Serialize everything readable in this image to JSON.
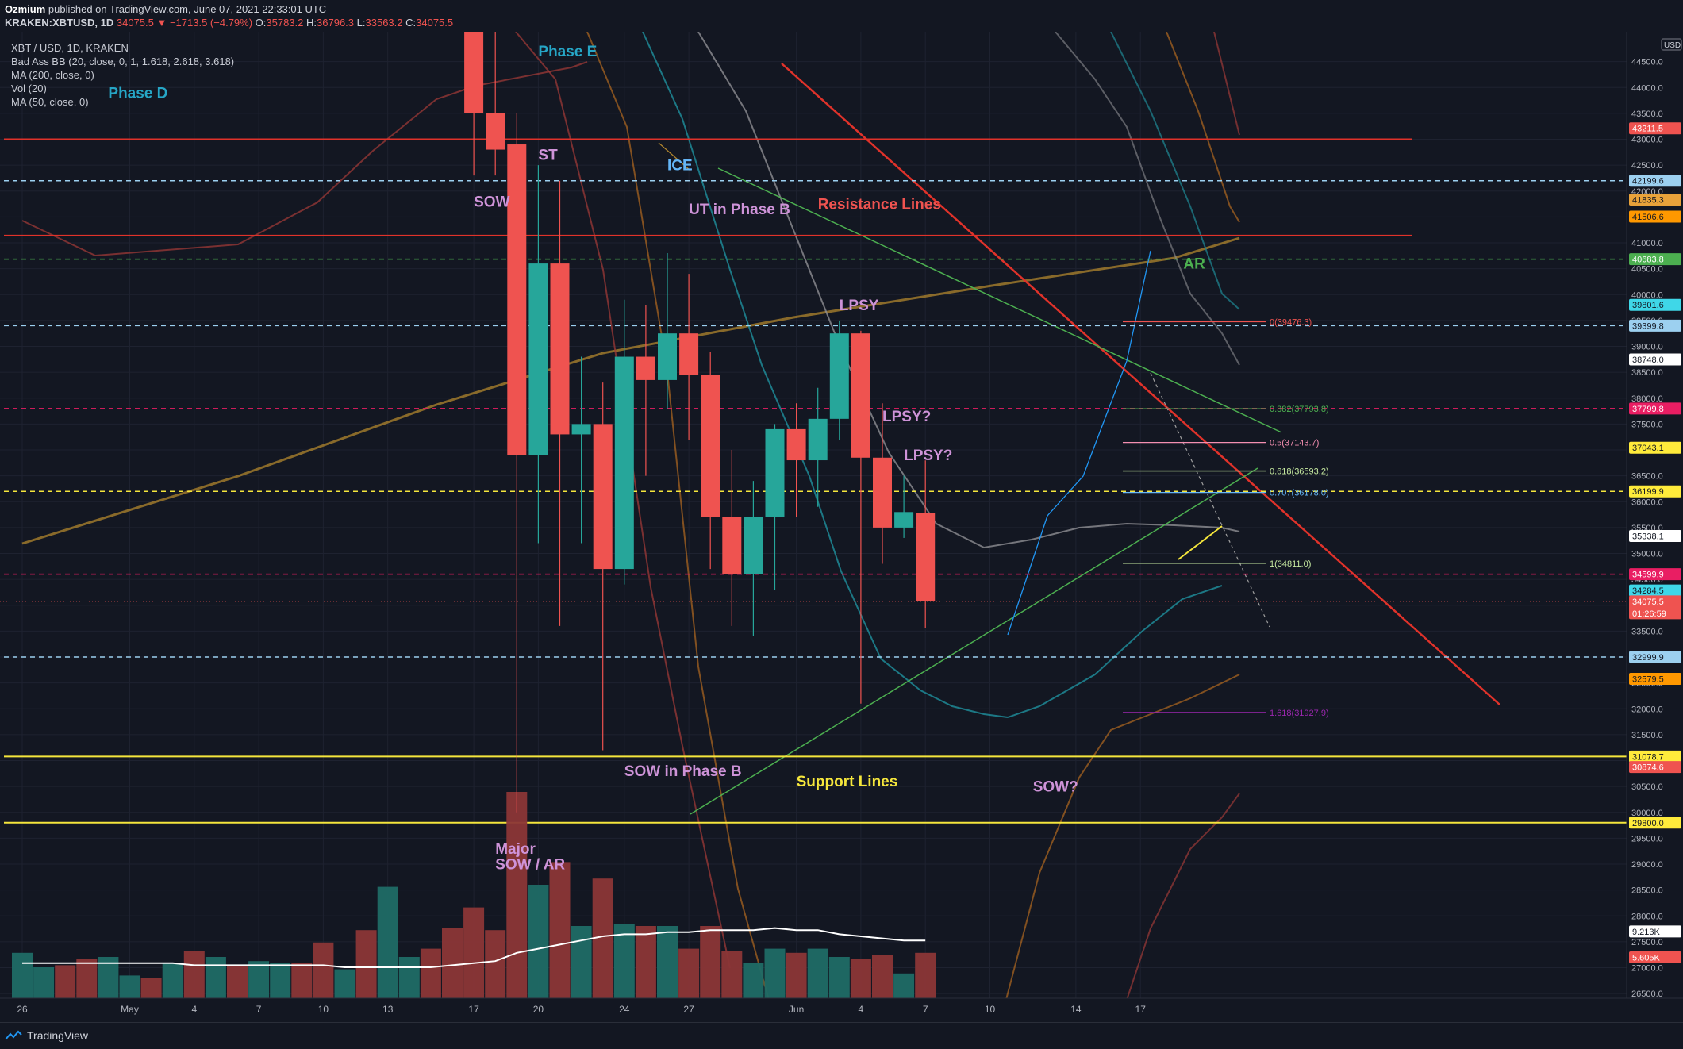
{
  "header": {
    "author": "Ozmium",
    "published_text": " published on TradingView.com, June 07, 2021 22:33:01 UTC",
    "symbol": "KRAKEN:XBTUSD, 1D",
    "last": "34075.5",
    "change": "▼ −1713.5 (−4.79%)",
    "o_label": "O:",
    "o": "35783.2",
    "h_label": "H:",
    "h": "36796.3",
    "l_label": "L:",
    "l": "33563.2",
    "c_label": "C:",
    "c": "34075.5"
  },
  "legend": [
    "XBT / USD, 1D, KRAKEN",
    "Bad Ass BB (20, close, 0, 1, 1.618, 2.618, 3.618)",
    "MA (200, close, 0)",
    "Vol (20)",
    "MA (50, close, 0)"
  ],
  "footer": {
    "brand": "TradingView"
  },
  "colors": {
    "up": "#26a69a",
    "down": "#ef5350",
    "background": "#131722"
  },
  "chart_data": {
    "type": "candlestick",
    "currency_label": "USD",
    "y_ticks": [
      26500,
      27000,
      27500,
      28000,
      28500,
      29000,
      29500,
      30000,
      30500,
      31000,
      31500,
      32000,
      32500,
      33000,
      33500,
      34000,
      34500,
      35000,
      35500,
      36000,
      36500,
      37000,
      37500,
      38000,
      38500,
      39000,
      39500,
      40000,
      40500,
      41000,
      41500,
      42000,
      42500,
      43000,
      43500,
      44000,
      44500
    ],
    "x_ticks": [
      {
        "label": "26",
        "date": "2021-04-26"
      },
      {
        "label": "May",
        "date": "2021-05-01"
      },
      {
        "label": "4",
        "date": "2021-05-04"
      },
      {
        "label": "7",
        "date": "2021-05-07"
      },
      {
        "label": "10",
        "date": "2021-05-10"
      },
      {
        "label": "13",
        "date": "2021-05-13"
      },
      {
        "label": "17",
        "date": "2021-05-17"
      },
      {
        "label": "20",
        "date": "2021-05-20"
      },
      {
        "label": "24",
        "date": "2021-05-24"
      },
      {
        "label": "27",
        "date": "2021-05-27"
      },
      {
        "label": "Jun",
        "date": "2021-06-01"
      },
      {
        "label": "4",
        "date": "2021-06-04"
      },
      {
        "label": "7",
        "date": "2021-06-07"
      },
      {
        "label": "10",
        "date": "2021-06-10"
      },
      {
        "label": "14",
        "date": "2021-06-14"
      },
      {
        "label": "17",
        "date": "2021-06-17"
      }
    ],
    "candles": [
      {
        "date": "2021-05-17",
        "open": 45300,
        "high": 46600,
        "low": 42300,
        "close": 43500
      },
      {
        "date": "2021-05-18",
        "open": 43500,
        "high": 45300,
        "low": 42300,
        "close": 42800
      },
      {
        "date": "2021-05-19",
        "open": 42900,
        "high": 43500,
        "low": 30000,
        "close": 36900
      },
      {
        "date": "2021-05-20",
        "open": 36900,
        "high": 42500,
        "low": 35200,
        "close": 40600
      },
      {
        "date": "2021-05-21",
        "open": 40600,
        "high": 42200,
        "low": 33600,
        "close": 37300
      },
      {
        "date": "2021-05-22",
        "open": 37300,
        "high": 38800,
        "low": 35200,
        "close": 37500
      },
      {
        "date": "2021-05-23",
        "open": 37500,
        "high": 38300,
        "low": 31200,
        "close": 34700
      },
      {
        "date": "2021-05-24",
        "open": 34700,
        "high": 39900,
        "low": 34400,
        "close": 38800
      },
      {
        "date": "2021-05-25",
        "open": 38800,
        "high": 39800,
        "low": 36500,
        "close": 38350
      },
      {
        "date": "2021-05-26",
        "open": 38350,
        "high": 40800,
        "low": 37800,
        "close": 39250
      },
      {
        "date": "2021-05-27",
        "open": 39250,
        "high": 40400,
        "low": 37200,
        "close": 38450
      },
      {
        "date": "2021-05-28",
        "open": 38450,
        "high": 38900,
        "low": 34700,
        "close": 35700
      },
      {
        "date": "2021-05-29",
        "open": 35700,
        "high": 37000,
        "low": 33600,
        "close": 34600
      },
      {
        "date": "2021-05-30",
        "open": 34600,
        "high": 36400,
        "low": 33400,
        "close": 35700
      },
      {
        "date": "2021-05-31",
        "open": 35700,
        "high": 37500,
        "low": 34300,
        "close": 37400
      },
      {
        "date": "2021-06-01",
        "open": 37400,
        "high": 37900,
        "low": 35700,
        "close": 36800
      },
      {
        "date": "2021-06-02",
        "open": 36800,
        "high": 38200,
        "low": 35900,
        "close": 37600
      },
      {
        "date": "2021-06-03",
        "open": 37600,
        "high": 39500,
        "low": 37200,
        "close": 39250
      },
      {
        "date": "2021-06-04",
        "open": 39250,
        "high": 39300,
        "low": 32100,
        "close": 36850
      },
      {
        "date": "2021-06-05",
        "open": 36850,
        "high": 37900,
        "low": 34800,
        "close": 35500
      },
      {
        "date": "2021-06-06",
        "open": 35500,
        "high": 36500,
        "low": 35300,
        "close": 35800
      },
      {
        "date": "2021-06-07",
        "open": 35783.2,
        "high": 36796.3,
        "low": 33563.2,
        "close": 34075.5
      }
    ],
    "volume": {
      "max": 100,
      "bars": [
        {
          "date": "2021-04-26",
          "v": 22,
          "dir": "up"
        },
        {
          "date": "2021-04-27",
          "v": 15,
          "dir": "up"
        },
        {
          "date": "2021-04-28",
          "v": 16,
          "dir": "down"
        },
        {
          "date": "2021-04-29",
          "v": 19,
          "dir": "down"
        },
        {
          "date": "2021-04-30",
          "v": 20,
          "dir": "up"
        },
        {
          "date": "2021-05-01",
          "v": 11,
          "dir": "up"
        },
        {
          "date": "2021-05-02",
          "v": 10,
          "dir": "down"
        },
        {
          "date": "2021-05-03",
          "v": 17,
          "dir": "up"
        },
        {
          "date": "2021-05-04",
          "v": 23,
          "dir": "down"
        },
        {
          "date": "2021-05-05",
          "v": 20,
          "dir": "up"
        },
        {
          "date": "2021-05-06",
          "v": 16,
          "dir": "down"
        },
        {
          "date": "2021-05-07",
          "v": 18,
          "dir": "up"
        },
        {
          "date": "2021-05-08",
          "v": 17,
          "dir": "up"
        },
        {
          "date": "2021-05-09",
          "v": 17,
          "dir": "down"
        },
        {
          "date": "2021-05-10",
          "v": 27,
          "dir": "down"
        },
        {
          "date": "2021-05-11",
          "v": 14,
          "dir": "up"
        },
        {
          "date": "2021-05-12",
          "v": 33,
          "dir": "down"
        },
        {
          "date": "2021-05-13",
          "v": 54,
          "dir": "up"
        },
        {
          "date": "2021-05-14",
          "v": 20,
          "dir": "up"
        },
        {
          "date": "2021-05-15",
          "v": 24,
          "dir": "down"
        },
        {
          "date": "2021-05-16",
          "v": 34,
          "dir": "down"
        },
        {
          "date": "2021-05-17",
          "v": 44,
          "dir": "down"
        },
        {
          "date": "2021-05-18",
          "v": 33,
          "dir": "down"
        },
        {
          "date": "2021-05-19",
          "v": 100,
          "dir": "down"
        },
        {
          "date": "2021-05-20",
          "v": 55,
          "dir": "up"
        },
        {
          "date": "2021-05-21",
          "v": 66,
          "dir": "down"
        },
        {
          "date": "2021-05-22",
          "v": 35,
          "dir": "up"
        },
        {
          "date": "2021-05-23",
          "v": 58,
          "dir": "down"
        },
        {
          "date": "2021-05-24",
          "v": 36,
          "dir": "up"
        },
        {
          "date": "2021-05-25",
          "v": 35,
          "dir": "down"
        },
        {
          "date": "2021-05-26",
          "v": 35,
          "dir": "up"
        },
        {
          "date": "2021-05-27",
          "v": 24,
          "dir": "down"
        },
        {
          "date": "2021-05-28",
          "v": 35,
          "dir": "down"
        },
        {
          "date": "2021-05-29",
          "v": 23,
          "dir": "down"
        },
        {
          "date": "2021-05-30",
          "v": 17,
          "dir": "up"
        },
        {
          "date": "2021-05-31",
          "v": 24,
          "dir": "up"
        },
        {
          "date": "2021-06-01",
          "v": 22,
          "dir": "down"
        },
        {
          "date": "2021-06-02",
          "v": 24,
          "dir": "up"
        },
        {
          "date": "2021-06-03",
          "v": 20,
          "dir": "up"
        },
        {
          "date": "2021-06-04",
          "v": 19,
          "dir": "down"
        },
        {
          "date": "2021-06-05",
          "v": 21,
          "dir": "down"
        },
        {
          "date": "2021-06-06",
          "v": 12,
          "dir": "up"
        },
        {
          "date": "2021-06-07",
          "v": 22,
          "dir": "down"
        }
      ],
      "ma": [
        17,
        17,
        17,
        17,
        17,
        17,
        17,
        17,
        16,
        16,
        16,
        16,
        16,
        16,
        16,
        15,
        15,
        15,
        15,
        15,
        16,
        17,
        18,
        22,
        24,
        26,
        28,
        30,
        31,
        31,
        32,
        32,
        33,
        33,
        33,
        34,
        33,
        33,
        31,
        30,
        29,
        28,
        28
      ]
    },
    "horizontal_lines": [
      {
        "price": 43000,
        "style": "solid",
        "color": "#e0322a"
      },
      {
        "price": 41140,
        "style": "solid",
        "color": "#e0322a"
      },
      {
        "price": 42199.6,
        "style": "dashed",
        "color": "#9cd0f0"
      },
      {
        "price": 40683.8,
        "style": "dashed",
        "color": "#4caf50"
      },
      {
        "price": 39399.8,
        "style": "dashed",
        "color": "#9cd0f0"
      },
      {
        "price": 37799.8,
        "style": "dashed",
        "color": "#e91e63"
      },
      {
        "price": 36199.9,
        "style": "dashed",
        "color": "#f5e63c"
      },
      {
        "price": 34599.9,
        "style": "dashed",
        "color": "#e91e63"
      },
      {
        "price": 32999.9,
        "style": "dashed",
        "color": "#9cd0f0"
      },
      {
        "price": 31078.7,
        "style": "solid",
        "color": "#f5e63c"
      },
      {
        "price": 29800.0,
        "style": "solid",
        "color": "#f5e63c"
      }
    ],
    "price_tags": [
      {
        "text": "43211.5",
        "price": 43211.5,
        "bg": "#ef5350",
        "fg": "#ffffff"
      },
      {
        "text": "42199.6",
        "price": 42199.6,
        "bg": "#9cd0f0",
        "fg": "#131722"
      },
      {
        "text": "41835.3",
        "price": 41835.3,
        "bg": "#e8a23a",
        "fg": "#131722"
      },
      {
        "text": "41506.6",
        "price": 41506.6,
        "bg": "#ff9800",
        "fg": "#131722"
      },
      {
        "text": "40683.8",
        "price": 40683.8,
        "bg": "#4caf50",
        "fg": "#ffffff"
      },
      {
        "text": "39801.6",
        "price": 39801.6,
        "bg": "#3fd7e8",
        "fg": "#131722"
      },
      {
        "text": "39399.8",
        "price": 39399.8,
        "bg": "#9cd0f0",
        "fg": "#131722"
      },
      {
        "text": "38748.0",
        "price": 38748.0,
        "bg": "#ffffff",
        "fg": "#131722"
      },
      {
        "text": "37799.8",
        "price": 37799.8,
        "bg": "#e91e63",
        "fg": "#ffffff"
      },
      {
        "text": "37043.1",
        "price": 37043.1,
        "bg": "#ffeb3b",
        "fg": "#131722"
      },
      {
        "text": "36199.9",
        "price": 36199.9,
        "bg": "#ffeb3b",
        "fg": "#131722"
      },
      {
        "text": "35338.1",
        "price": 35338.1,
        "bg": "#ffffff",
        "fg": "#131722"
      },
      {
        "text": "34599.9",
        "price": 34599.9,
        "bg": "#e91e63",
        "fg": "#ffffff"
      },
      {
        "text": "34284.5",
        "price": 34284.5,
        "bg": "#3fd7e8",
        "fg": "#131722"
      },
      {
        "text": "34075.5",
        "sub": "01:26:59",
        "price": 34075.5,
        "bg": "#ef5350",
        "fg": "#ffffff",
        "current": true
      },
      {
        "text": "32999.9",
        "price": 32999.9,
        "bg": "#9cd0f0",
        "fg": "#131722"
      },
      {
        "text": "32579.5",
        "price": 32579.5,
        "bg": "#ff9800",
        "fg": "#131722"
      },
      {
        "text": "31078.7",
        "price": 31078.7,
        "bg": "#ffeb3b",
        "fg": "#131722"
      },
      {
        "text": "30874.6",
        "price": 30874.6,
        "bg": "#ef5350",
        "fg": "#ffffff"
      },
      {
        "text": "29800.0",
        "price": 29800.0,
        "bg": "#ffeb3b",
        "fg": "#131722"
      },
      {
        "text": "9.213K",
        "price": 27700,
        "bg": "#ffffff",
        "fg": "#131722"
      },
      {
        "text": "5.605K",
        "price": 27200,
        "bg": "#ef5350",
        "fg": "#ffffff"
      }
    ],
    "fibonacci": [
      {
        "label": "0(39476.3)",
        "price": 39476.3,
        "color": "#ef5350"
      },
      {
        "label": "0.382(37793.8)",
        "price": 37793.8,
        "color": "#4caf50"
      },
      {
        "label": "0.5(37143.7)",
        "price": 37143.7,
        "color": "#f48fb1"
      },
      {
        "label": "0.618(36593.2)",
        "price": 36593.2,
        "color": "#c6e9a0"
      },
      {
        "label": "0.707(36178.0)",
        "price": 36178.0,
        "color": "#64b5f6"
      },
      {
        "label": "1(34811.0)",
        "price": 34811.0,
        "color": "#c6e9a0"
      },
      {
        "label": "1.618(31927.9)",
        "price": 31927.9,
        "color": "#9c27b0"
      }
    ],
    "annotations": [
      {
        "text": "Phase D",
        "color": "#26a6c6",
        "date": "2021-04-30",
        "price": 43800
      },
      {
        "text": "Phase E",
        "color": "#26a6c6",
        "date": "2021-05-20",
        "price": 44600
      },
      {
        "text": "ST",
        "color": "#ce93d8",
        "date": "2021-05-20",
        "price": 42600
      },
      {
        "text": "SOW",
        "color": "#ce93d8",
        "date": "2021-05-17",
        "price": 41700
      },
      {
        "text": "ICE",
        "color": "#64b5f6",
        "date": "2021-05-26",
        "price": 42400
      },
      {
        "text": "UT in Phase B",
        "color": "#ce93d8",
        "date": "2021-05-27",
        "price": 41550
      },
      {
        "text": "Resistance Lines",
        "color": "#ef5350",
        "date": "2021-06-02",
        "price": 41650
      },
      {
        "text": "AR",
        "color": "#4caf50",
        "date": "2021-06-19",
        "price": 40500
      },
      {
        "text": "LPSY",
        "color": "#ce93d8",
        "date": "2021-06-03",
        "price": 39700
      },
      {
        "text": "LPSY?",
        "color": "#ce93d8",
        "date": "2021-06-05",
        "price": 37550
      },
      {
        "text": "LPSY?",
        "color": "#ce93d8",
        "date": "2021-06-06",
        "price": 36800
      },
      {
        "text": "SOW in Phase B",
        "color": "#ce93d8",
        "date": "2021-05-24",
        "price": 30700
      },
      {
        "text": "Support Lines",
        "color": "#f5e63c",
        "date": "2021-06-01",
        "price": 30500
      },
      {
        "text": "SOW?",
        "color": "#ce93d8",
        "date": "2021-06-12",
        "price": 30400
      },
      {
        "text": "Major",
        "color": "#ce93d8",
        "date": "2021-05-18",
        "price": 29200
      },
      {
        "text": "SOW / AR",
        "color": "#ce93d8",
        "date": "2021-05-18",
        "price": 28900
      }
    ]
  }
}
